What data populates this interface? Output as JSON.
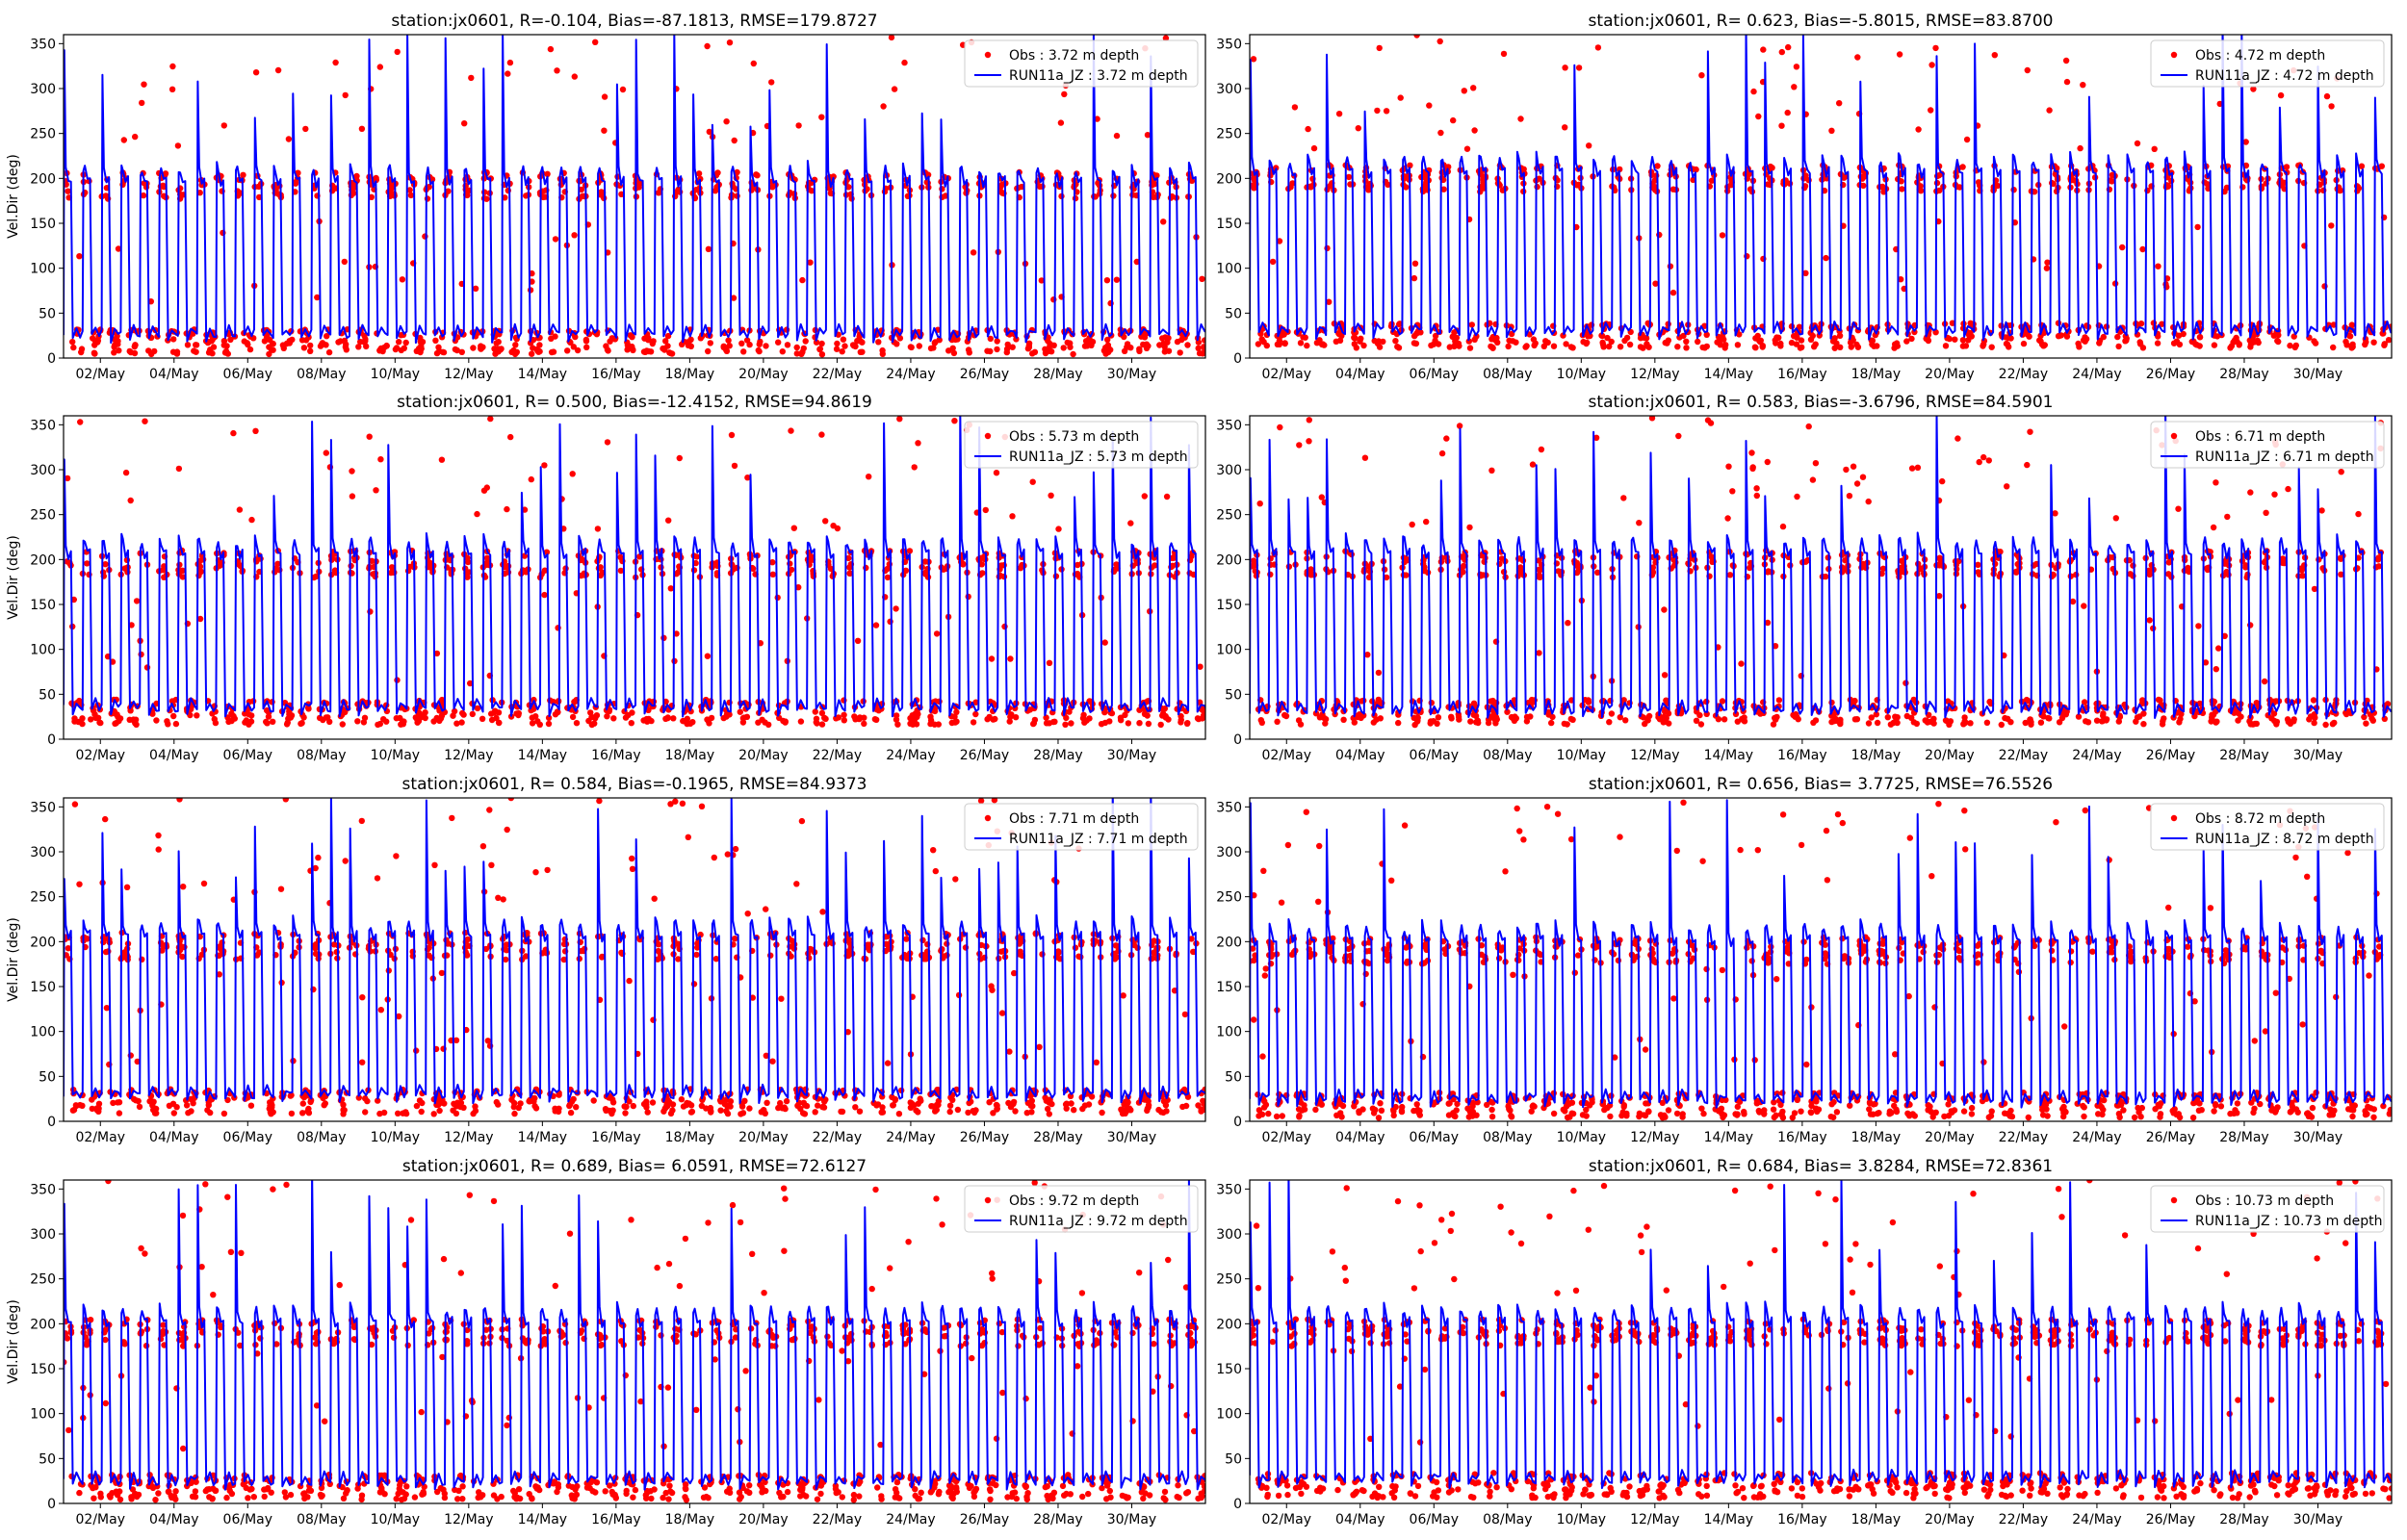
{
  "figure": {
    "background": "#ffffff"
  },
  "style": {
    "obs_color": "#ff0000",
    "model_color": "#0000ff"
  },
  "chart_data": [
    {
      "type": "scatter+line",
      "title": "station:jx0601, R=-0.104, Bias=-87.1813, RMSE=179.8727",
      "ylabel": "Vel.Dir (deg)",
      "ylim": [
        0,
        360
      ],
      "yticks": [
        0,
        50,
        100,
        150,
        200,
        250,
        300,
        350
      ],
      "xlim_days": [
        0,
        31
      ],
      "xtick_days": [
        1,
        3,
        5,
        7,
        9,
        11,
        13,
        15,
        17,
        19,
        21,
        23,
        25,
        27,
        29
      ],
      "xtick_labels": [
        "02/May",
        "04/May",
        "06/May",
        "08/May",
        "10/May",
        "12/May",
        "14/May",
        "16/May",
        "18/May",
        "20/May",
        "22/May",
        "24/May",
        "26/May",
        "28/May",
        "30/May"
      ],
      "series": [
        {
          "name": "Obs : 3.72 m depth",
          "kind": "points",
          "color": "#ff0000",
          "high": 192,
          "low": 18
        },
        {
          "name": "RUN11a_JZ : 3.72 m depth",
          "kind": "line",
          "color": "#0000ff",
          "high": 195,
          "low": 22
        }
      ]
    },
    {
      "type": "scatter+line",
      "title": "station:jx0601, R= 0.623, Bias=-5.8015, RMSE=83.8700",
      "ylabel": "",
      "ylim": [
        0,
        360
      ],
      "yticks": [
        0,
        50,
        100,
        150,
        200,
        250,
        300,
        350
      ],
      "xlim_days": [
        0,
        31
      ],
      "xtick_days": [
        1,
        3,
        5,
        7,
        9,
        11,
        13,
        15,
        17,
        19,
        21,
        23,
        25,
        27,
        29
      ],
      "xtick_labels": [
        "02/May",
        "04/May",
        "06/May",
        "08/May",
        "10/May",
        "12/May",
        "14/May",
        "16/May",
        "18/May",
        "20/May",
        "22/May",
        "24/May",
        "26/May",
        "28/May",
        "30/May"
      ],
      "series": [
        {
          "name": "Obs : 4.72 m depth",
          "kind": "points",
          "color": "#ff0000",
          "high": 200,
          "low": 25
        },
        {
          "name": "RUN11a_JZ : 4.72 m depth",
          "kind": "line",
          "color": "#0000ff",
          "high": 205,
          "low": 25
        }
      ]
    },
    {
      "type": "scatter+line",
      "title": "station:jx0601, R= 0.500, Bias=-12.4152, RMSE=94.8619",
      "ylabel": "Vel.Dir (deg)",
      "ylim": [
        0,
        360
      ],
      "yticks": [
        0,
        50,
        100,
        150,
        200,
        250,
        300,
        350
      ],
      "xlim_days": [
        0,
        31
      ],
      "xtick_days": [
        1,
        3,
        5,
        7,
        9,
        11,
        13,
        15,
        17,
        19,
        21,
        23,
        25,
        27,
        29
      ],
      "xtick_labels": [
        "02/May",
        "04/May",
        "06/May",
        "08/May",
        "10/May",
        "12/May",
        "14/May",
        "16/May",
        "18/May",
        "20/May",
        "22/May",
        "24/May",
        "26/May",
        "28/May",
        "30/May"
      ],
      "series": [
        {
          "name": "Obs : 5.73 m depth",
          "kind": "points",
          "color": "#ff0000",
          "high": 195,
          "low": 30
        },
        {
          "name": "RUN11a_JZ : 5.73 m depth",
          "kind": "line",
          "color": "#0000ff",
          "high": 205,
          "low": 30
        }
      ]
    },
    {
      "type": "scatter+line",
      "title": "station:jx0601, R= 0.583, Bias=-3.6796, RMSE=84.5901",
      "ylabel": "",
      "ylim": [
        0,
        360
      ],
      "yticks": [
        0,
        50,
        100,
        150,
        200,
        250,
        300,
        350
      ],
      "xlim_days": [
        0,
        31
      ],
      "xtick_days": [
        1,
        3,
        5,
        7,
        9,
        11,
        13,
        15,
        17,
        19,
        21,
        23,
        25,
        27,
        29
      ],
      "xtick_labels": [
        "02/May",
        "04/May",
        "06/May",
        "08/May",
        "10/May",
        "12/May",
        "14/May",
        "16/May",
        "18/May",
        "20/May",
        "22/May",
        "24/May",
        "26/May",
        "28/May",
        "30/May"
      ],
      "series": [
        {
          "name": "Obs : 6.71 m depth",
          "kind": "points",
          "color": "#ff0000",
          "high": 195,
          "low": 30
        },
        {
          "name": "RUN11a_JZ : 6.71 m depth",
          "kind": "line",
          "color": "#0000ff",
          "high": 205,
          "low": 28
        }
      ]
    },
    {
      "type": "scatter+line",
      "title": "station:jx0601, R= 0.584, Bias=-0.1965, RMSE=84.9373",
      "ylabel": "Vel.Dir (deg)",
      "ylim": [
        0,
        360
      ],
      "yticks": [
        0,
        50,
        100,
        150,
        200,
        250,
        300,
        350
      ],
      "xlim_days": [
        0,
        31
      ],
      "xtick_days": [
        1,
        3,
        5,
        7,
        9,
        11,
        13,
        15,
        17,
        19,
        21,
        23,
        25,
        27,
        29
      ],
      "xtick_labels": [
        "02/May",
        "04/May",
        "06/May",
        "08/May",
        "10/May",
        "12/May",
        "14/May",
        "16/May",
        "18/May",
        "20/May",
        "22/May",
        "24/May",
        "26/May",
        "28/May",
        "30/May"
      ],
      "series": [
        {
          "name": "Obs : 7.71 m depth",
          "kind": "points",
          "color": "#ff0000",
          "high": 195,
          "low": 22
        },
        {
          "name": "RUN11a_JZ : 7.71 m depth",
          "kind": "line",
          "color": "#0000ff",
          "high": 205,
          "low": 25
        }
      ]
    },
    {
      "type": "scatter+line",
      "title": "station:jx0601, R= 0.656, Bias= 3.7725, RMSE=76.5526",
      "ylabel": "",
      "ylim": [
        0,
        360
      ],
      "yticks": [
        0,
        50,
        100,
        150,
        200,
        250,
        300,
        350
      ],
      "xlim_days": [
        0,
        31
      ],
      "xtick_days": [
        1,
        3,
        5,
        7,
        9,
        11,
        13,
        15,
        17,
        19,
        21,
        23,
        25,
        27,
        29
      ],
      "xtick_labels": [
        "02/May",
        "04/May",
        "06/May",
        "08/May",
        "10/May",
        "12/May",
        "14/May",
        "16/May",
        "18/May",
        "20/May",
        "22/May",
        "24/May",
        "26/May",
        "28/May",
        "30/May"
      ],
      "series": [
        {
          "name": "Obs : 8.72 m depth",
          "kind": "points",
          "color": "#ff0000",
          "high": 190,
          "low": 18
        },
        {
          "name": "RUN11a_JZ : 8.72 m depth",
          "kind": "line",
          "color": "#0000ff",
          "high": 200,
          "low": 20
        }
      ]
    },
    {
      "type": "scatter+line",
      "title": "station:jx0601, R= 0.689, Bias= 6.0591, RMSE=72.6127",
      "ylabel": "Vel.Dir (deg)",
      "ylim": [
        0,
        360
      ],
      "yticks": [
        0,
        50,
        100,
        150,
        200,
        250,
        300,
        350
      ],
      "xlim_days": [
        0,
        31
      ],
      "xtick_days": [
        1,
        3,
        5,
        7,
        9,
        11,
        13,
        15,
        17,
        19,
        21,
        23,
        25,
        27,
        29
      ],
      "xtick_labels": [
        "02/May",
        "04/May",
        "06/May",
        "08/May",
        "10/May",
        "12/May",
        "14/May",
        "16/May",
        "18/May",
        "20/May",
        "22/May",
        "24/May",
        "26/May",
        "28/May",
        "30/May"
      ],
      "series": [
        {
          "name": "Obs : 9.72 m depth",
          "kind": "points",
          "color": "#ff0000",
          "high": 190,
          "low": 18
        },
        {
          "name": "RUN11a_JZ : 9.72 m depth",
          "kind": "line",
          "color": "#0000ff",
          "high": 200,
          "low": 20
        }
      ]
    },
    {
      "type": "scatter+line",
      "title": "station:jx0601, R= 0.684, Bias= 3.8284, RMSE=72.8361",
      "ylabel": "",
      "ylim": [
        0,
        360
      ],
      "yticks": [
        0,
        50,
        100,
        150,
        200,
        250,
        300,
        350
      ],
      "xlim_days": [
        0,
        31
      ],
      "xtick_days": [
        1,
        3,
        5,
        7,
        9,
        11,
        13,
        15,
        17,
        19,
        21,
        23,
        25,
        27,
        29
      ],
      "xtick_labels": [
        "02/May",
        "04/May",
        "06/May",
        "08/May",
        "10/May",
        "12/May",
        "14/May",
        "16/May",
        "18/May",
        "20/May",
        "22/May",
        "24/May",
        "26/May",
        "28/May",
        "30/May"
      ],
      "series": [
        {
          "name": "Obs : 10.73 m depth",
          "kind": "points",
          "color": "#ff0000",
          "high": 190,
          "low": 20
        },
        {
          "name": "RUN11a_JZ : 10.73 m depth",
          "kind": "line",
          "color": "#0000ff",
          "high": 200,
          "low": 22
        }
      ]
    }
  ]
}
